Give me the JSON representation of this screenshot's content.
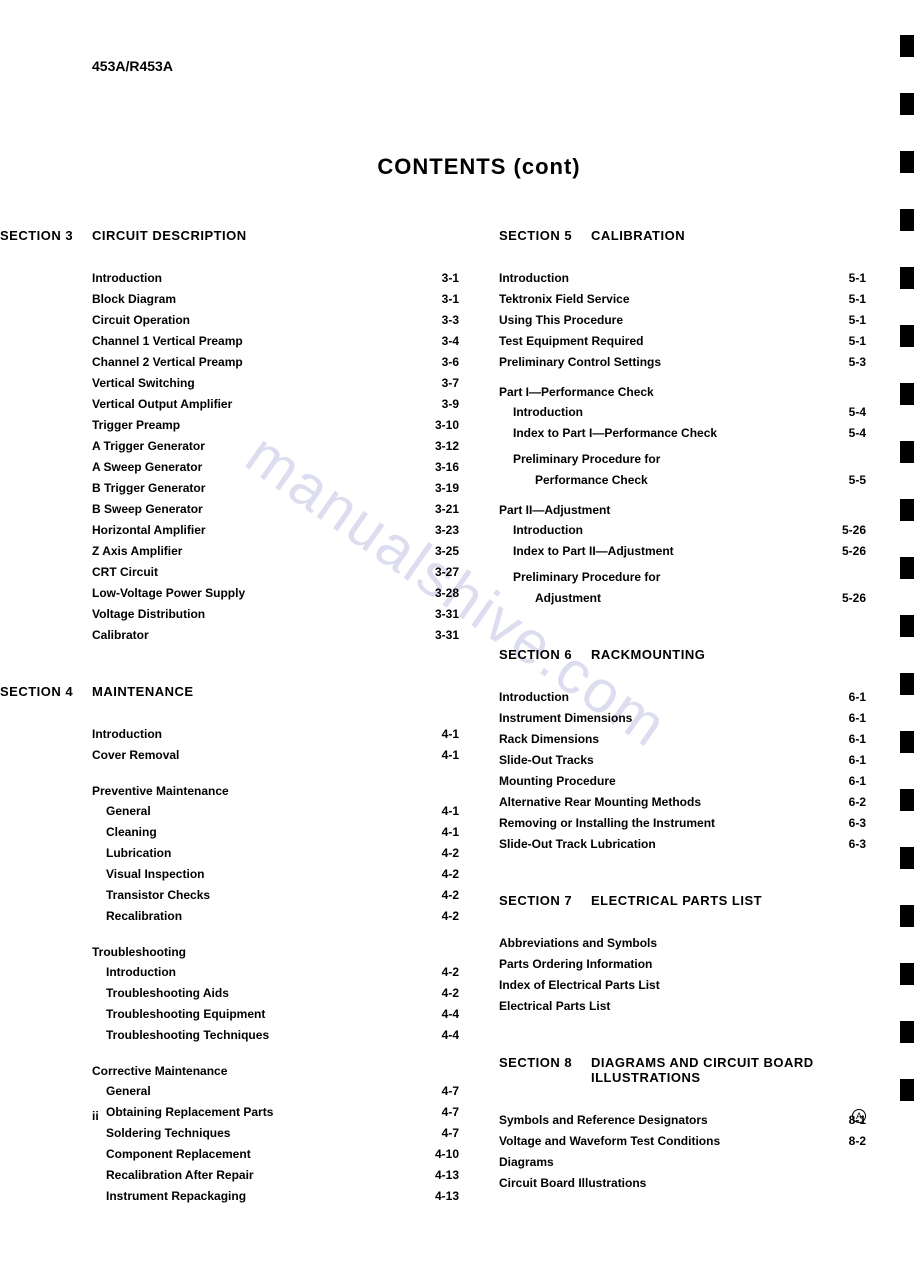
{
  "model_label": "453A/R453A",
  "title": "CONTENTS (cont)",
  "watermark": "manualshive.com",
  "page_number": "ii",
  "page_symbol": "A",
  "sections": {
    "s3": {
      "number": "SECTION 3",
      "title": "CIRCUIT DESCRIPTION",
      "entries": [
        {
          "label": "Introduction",
          "page": "3-1"
        },
        {
          "label": "Block Diagram",
          "page": "3-1"
        },
        {
          "label": "Circuit Operation",
          "page": "3-3"
        },
        {
          "label": "Channel 1 Vertical Preamp",
          "page": "3-4"
        },
        {
          "label": "Channel 2 Vertical Preamp",
          "page": "3-6"
        },
        {
          "label": "Vertical Switching",
          "page": "3-7"
        },
        {
          "label": "Vertical Output Amplifier",
          "page": "3-9"
        },
        {
          "label": "Trigger Preamp",
          "page": "3-10"
        },
        {
          "label": "A Trigger Generator",
          "page": "3-12"
        },
        {
          "label": "A Sweep Generator",
          "page": "3-16"
        },
        {
          "label": "B Trigger Generator",
          "page": "3-19"
        },
        {
          "label": "B Sweep Generator",
          "page": "3-21"
        },
        {
          "label": "Horizontal Amplifier",
          "page": "3-23"
        },
        {
          "label": "Z Axis Amplifier",
          "page": "3-25"
        },
        {
          "label": "CRT Circuit",
          "page": "3-27"
        },
        {
          "label": "Low-Voltage Power Supply",
          "page": "3-28"
        },
        {
          "label": "Voltage Distribution",
          "page": "3-31"
        },
        {
          "label": "Calibrator",
          "page": "3-31"
        }
      ]
    },
    "s4": {
      "number": "SECTION 4",
      "title": "MAINTENANCE",
      "groups": [
        {
          "heading": "",
          "entries": [
            {
              "label": "Introduction",
              "page": "4-1"
            },
            {
              "label": "Cover Removal",
              "page": "4-1"
            }
          ]
        },
        {
          "heading": "Preventive Maintenance",
          "entries": [
            {
              "label": "General",
              "page": "4-1"
            },
            {
              "label": "Cleaning",
              "page": "4-1"
            },
            {
              "label": "Lubrication",
              "page": "4-2"
            },
            {
              "label": "Visual Inspection",
              "page": "4-2"
            },
            {
              "label": "Transistor Checks",
              "page": "4-2"
            },
            {
              "label": "Recalibration",
              "page": "4-2"
            }
          ]
        },
        {
          "heading": "Troubleshooting",
          "entries": [
            {
              "label": "Introduction",
              "page": "4-2"
            },
            {
              "label": "Troubleshooting Aids",
              "page": "4-2"
            },
            {
              "label": "Troubleshooting Equipment",
              "page": "4-4"
            },
            {
              "label": "Troubleshooting Techniques",
              "page": "4-4"
            }
          ]
        },
        {
          "heading": "Corrective Maintenance",
          "entries": [
            {
              "label": "General",
              "page": "4-7"
            },
            {
              "label": "Obtaining Replacement Parts",
              "page": "4-7"
            },
            {
              "label": "Soldering Techniques",
              "page": "4-7"
            },
            {
              "label": "Component Replacement",
              "page": "4-10"
            },
            {
              "label": "Recalibration After Repair",
              "page": "4-13"
            },
            {
              "label": "Instrument Repackaging",
              "page": "4-13"
            }
          ]
        }
      ]
    },
    "s5": {
      "number": "SECTION 5",
      "title": "CALIBRATION",
      "plain": [
        {
          "label": "Introduction",
          "page": "5-1"
        },
        {
          "label": "Tektronix Field Service",
          "page": "5-1"
        },
        {
          "label": "Using This Procedure",
          "page": "5-1"
        },
        {
          "label": "Test Equipment Required",
          "page": "5-1"
        },
        {
          "label": "Preliminary Control Settings",
          "page": "5-3"
        }
      ],
      "part1_heading": "Part I—Performance Check",
      "part1": [
        {
          "label": "Introduction",
          "page": "5-4",
          "indent": true
        },
        {
          "label": "Index to Part I—Performance Check",
          "page": "5-4",
          "indent": true
        }
      ],
      "part1_sub_label1": "Preliminary Procedure for",
      "part1_sub_label2": "Performance Check",
      "part1_sub_page": "5-5",
      "part2_heading": "Part II—Adjustment",
      "part2": [
        {
          "label": "Introduction",
          "page": "5-26",
          "indent": true
        },
        {
          "label": "Index to Part II—Adjustment",
          "page": "5-26",
          "indent": true
        }
      ],
      "part2_sub_label1": "Preliminary Procedure for",
      "part2_sub_label2": "Adjustment",
      "part2_sub_page": "5-26"
    },
    "s6": {
      "number": "SECTION 6",
      "title": "RACKMOUNTING",
      "entries": [
        {
          "label": "Introduction",
          "page": "6-1"
        },
        {
          "label": "Instrument Dimensions",
          "page": "6-1"
        },
        {
          "label": "Rack Dimensions",
          "page": "6-1"
        },
        {
          "label": "Slide-Out Tracks",
          "page": "6-1"
        },
        {
          "label": "Mounting Procedure",
          "page": "6-1"
        },
        {
          "label": "Alternative Rear Mounting Methods",
          "page": "6-2"
        },
        {
          "label": "Removing or Installing the Instrument",
          "page": "6-3"
        },
        {
          "label": "Slide-Out Track Lubrication",
          "page": "6-3"
        }
      ]
    },
    "s7": {
      "number": "SECTION 7",
      "title": "ELECTRICAL PARTS LIST",
      "entries": [
        {
          "label": "Abbreviations and Symbols",
          "page": ""
        },
        {
          "label": "Parts Ordering Information",
          "page": ""
        },
        {
          "label": "Index of Electrical Parts List",
          "page": ""
        },
        {
          "label": "Electrical Parts List",
          "page": ""
        }
      ]
    },
    "s8": {
      "number": "SECTION 8",
      "title_line1": "DIAGRAMS AND CIRCUIT BOARD",
      "title_line2": "ILLUSTRATIONS",
      "entries": [
        {
          "label": "Symbols and Reference Designators",
          "page": "8-1"
        },
        {
          "label": "Voltage and Waveform Test Conditions",
          "page": "8-2"
        },
        {
          "label": "Diagrams",
          "page": ""
        },
        {
          "label": "Circuit Board Illustrations",
          "page": ""
        }
      ]
    }
  }
}
